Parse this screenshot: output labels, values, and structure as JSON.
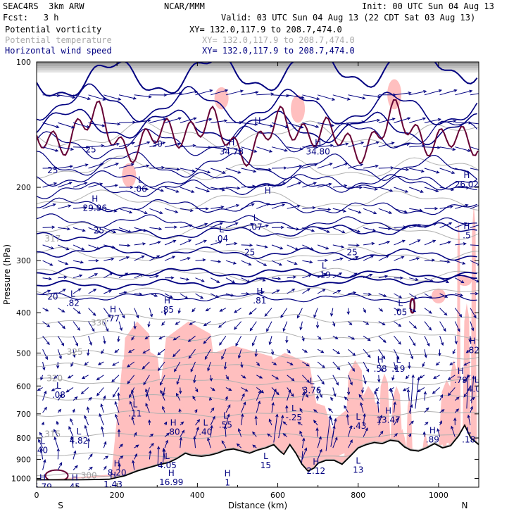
{
  "header": {
    "model": "SEAC4RS  3km ARW",
    "org": "NCAR/MMM",
    "init": "Init: 00 UTC Sun 04 Aug 13",
    "fcst": "Fcst:   3 h",
    "valid": "Valid: 03 UTC Sun 04 Aug 13 (22 CDT Sat 03 Aug 13)",
    "fields": [
      {
        "name": "Potential vorticity",
        "xy": "XY= 132.0,117.9 to 208.7,474.0",
        "color": "#000000"
      },
      {
        "name": "Potential temperature",
        "xy": "XY= 132.0,117.9 to 208.7,474.0",
        "color": "#a9a9a9"
      },
      {
        "name": "Horizontal wind speed",
        "xy": "XY= 132.0,117.9 to 208.7,474.0",
        "color": "#000080"
      }
    ]
  },
  "chart_data": {
    "type": "cross-section",
    "xlabel": "Distance (km)",
    "ylabel": "Pressure (hPa)",
    "xlim": [
      0,
      1100
    ],
    "ylim": [
      1050,
      100
    ],
    "x_ticks": [
      0,
      200,
      400,
      600,
      800,
      1000
    ],
    "y_ticks": [
      100,
      200,
      300,
      400,
      500,
      600,
      700,
      800,
      900,
      1000
    ],
    "x_end_labels": {
      "left": "S",
      "right": "N"
    },
    "colors": {
      "pv": "#ffbfbf",
      "theta": "#b0b0b0",
      "wind": "#000080",
      "pv_contour": "#660033",
      "terrain": "#000000"
    },
    "terrain_pressure": [
      [
        0,
        1008
      ],
      [
        100,
        1008
      ],
      [
        180,
        1005
      ],
      [
        220,
        985
      ],
      [
        250,
        960
      ],
      [
        275,
        945
      ],
      [
        300,
        930
      ],
      [
        330,
        915
      ],
      [
        350,
        895
      ],
      [
        370,
        870
      ],
      [
        385,
        880
      ],
      [
        410,
        885
      ],
      [
        430,
        880
      ],
      [
        450,
        870
      ],
      [
        470,
        855
      ],
      [
        490,
        850
      ],
      [
        510,
        860
      ],
      [
        530,
        870
      ],
      [
        550,
        855
      ],
      [
        570,
        845
      ],
      [
        590,
        830
      ],
      [
        605,
        860
      ],
      [
        615,
        875
      ],
      [
        630,
        830
      ],
      [
        645,
        870
      ],
      [
        660,
        925
      ],
      [
        675,
        960
      ],
      [
        690,
        945
      ],
      [
        700,
        920
      ],
      [
        720,
        905
      ],
      [
        740,
        905
      ],
      [
        760,
        925
      ],
      [
        780,
        885
      ],
      [
        790,
        865
      ],
      [
        800,
        845
      ],
      [
        820,
        830
      ],
      [
        840,
        820
      ],
      [
        860,
        825
      ],
      [
        880,
        810
      ],
      [
        900,
        815
      ],
      [
        915,
        840
      ],
      [
        930,
        855
      ],
      [
        950,
        860
      ],
      [
        970,
        845
      ],
      [
        990,
        825
      ],
      [
        1010,
        845
      ],
      [
        1030,
        835
      ],
      [
        1050,
        790
      ],
      [
        1065,
        745
      ],
      [
        1080,
        800
      ],
      [
        1100,
        830
      ]
    ],
    "theta_contour_labels": [
      {
        "x": 40,
        "p": 270,
        "label": "317"
      },
      {
        "x": 155,
        "p": 430,
        "label": "330"
      },
      {
        "x": 95,
        "p": 505,
        "label": "325"
      },
      {
        "x": 45,
        "p": 585,
        "label": "320"
      },
      {
        "x": 40,
        "p": 795,
        "label": "315"
      },
      {
        "x": 130,
        "p": 1000,
        "label": "300"
      }
    ],
    "wind_contour_labels": [
      {
        "x": 40,
        "p": 185,
        "label": "25"
      },
      {
        "x": 135,
        "p": 165,
        "label": "25"
      },
      {
        "x": 300,
        "p": 160,
        "label": "30"
      },
      {
        "x": 155,
        "p": 258,
        "label": "25"
      },
      {
        "x": 40,
        "p": 372,
        "label": "20"
      },
      {
        "x": 530,
        "p": 291,
        "label": "25"
      },
      {
        "x": 785,
        "p": 291,
        "label": "25"
      }
    ],
    "extrema": [
      {
        "kind": "H",
        "x": 485,
        "p": 167,
        "value": "34.78"
      },
      {
        "kind": "H",
        "x": 700,
        "p": 167,
        "value": "34.80"
      },
      {
        "kind": "H",
        "x": 145,
        "p": 228,
        "value": "29.96"
      },
      {
        "kind": "L",
        "x": 258,
        "p": 205,
        "value": ".06"
      },
      {
        "kind": "L",
        "x": 460,
        "p": 270,
        "value": ".04"
      },
      {
        "kind": "L",
        "x": 545,
        "p": 253,
        "value": ".07"
      },
      {
        "kind": "H",
        "x": 1070,
        "p": 200,
        "value": "26.02"
      },
      {
        "kind": "H",
        "x": 1070,
        "p": 265,
        "value": ".5"
      },
      {
        "kind": "L",
        "x": 715,
        "p": 330,
        "value": ".19"
      },
      {
        "kind": "L",
        "x": 90,
        "p": 385,
        "value": ".82"
      },
      {
        "kind": "H",
        "x": 190,
        "p": 420,
        "value": ".77"
      },
      {
        "kind": "H",
        "x": 325,
        "p": 400,
        "value": ".85"
      },
      {
        "kind": "H",
        "x": 555,
        "p": 380,
        "value": ".81"
      },
      {
        "kind": "L",
        "x": 905,
        "p": 405,
        "value": ".05"
      },
      {
        "kind": "H",
        "x": 1085,
        "p": 500,
        "value": ".82"
      },
      {
        "kind": "H",
        "x": 855,
        "p": 555,
        "value": ".58"
      },
      {
        "kind": "L",
        "x": 900,
        "p": 555,
        "value": ".19"
      },
      {
        "kind": "H",
        "x": 1055,
        "p": 590,
        "value": ".79"
      },
      {
        "kind": "L",
        "x": 1095,
        "p": 620,
        "value": "4.07"
      },
      {
        "kind": "L",
        "x": 685,
        "p": 625,
        "value": "3.76"
      },
      {
        "kind": "L",
        "x": 55,
        "p": 640,
        "value": ".08"
      },
      {
        "kind": "L",
        "x": 245,
        "p": 710,
        "value": ".11"
      },
      {
        "kind": "L",
        "x": 640,
        "p": 725,
        "value": "-.25"
      },
      {
        "kind": "H",
        "x": 875,
        "p": 735,
        "value": "13.47"
      },
      {
        "kind": "L",
        "x": 800,
        "p": 760,
        "value": "-.43"
      },
      {
        "kind": "L",
        "x": 470,
        "p": 755,
        "value": ".55"
      },
      {
        "kind": "H",
        "x": 340,
        "p": 785,
        "value": ".80"
      },
      {
        "kind": "L",
        "x": 420,
        "p": 785,
        "value": ".40"
      },
      {
        "kind": "L",
        "x": 105,
        "p": 825,
        "value": "4.82"
      },
      {
        "kind": "H",
        "x": 985,
        "p": 820,
        "value": ".89"
      },
      {
        "kind": "L",
        "x": 1075,
        "p": 820,
        "value": ".18"
      },
      {
        "kind": "L",
        "x": 15,
        "p": 870,
        "value": "40"
      },
      {
        "kind": "L",
        "x": 325,
        "p": 945,
        "value": "4.05"
      },
      {
        "kind": "H",
        "x": 200,
        "p": 985,
        "value": "8.20"
      },
      {
        "kind": "H",
        "x": 190,
        "p": 1050,
        "value": "1.43"
      },
      {
        "kind": "H",
        "x": 335,
        "p": 1038,
        "value": "16.99"
      },
      {
        "kind": "H",
        "x": 15,
        "p": 1065,
        "value": "5.79"
      },
      {
        "kind": "H",
        "x": 95,
        "p": 1065,
        "value": "45"
      },
      {
        "kind": "H",
        "x": 695,
        "p": 975,
        "value": "2.12"
      },
      {
        "kind": "H",
        "x": 475,
        "p": 1040,
        "value": "1"
      },
      {
        "kind": "L",
        "x": 570,
        "p": 945,
        "value": "15"
      },
      {
        "kind": "L",
        "x": 800,
        "p": 970,
        "value": "13"
      },
      {
        "kind": "H",
        "x": 550,
        "p": 148,
        "value": "H"
      },
      {
        "kind": "H",
        "x": 575,
        "p": 218,
        "value": "H"
      }
    ]
  }
}
